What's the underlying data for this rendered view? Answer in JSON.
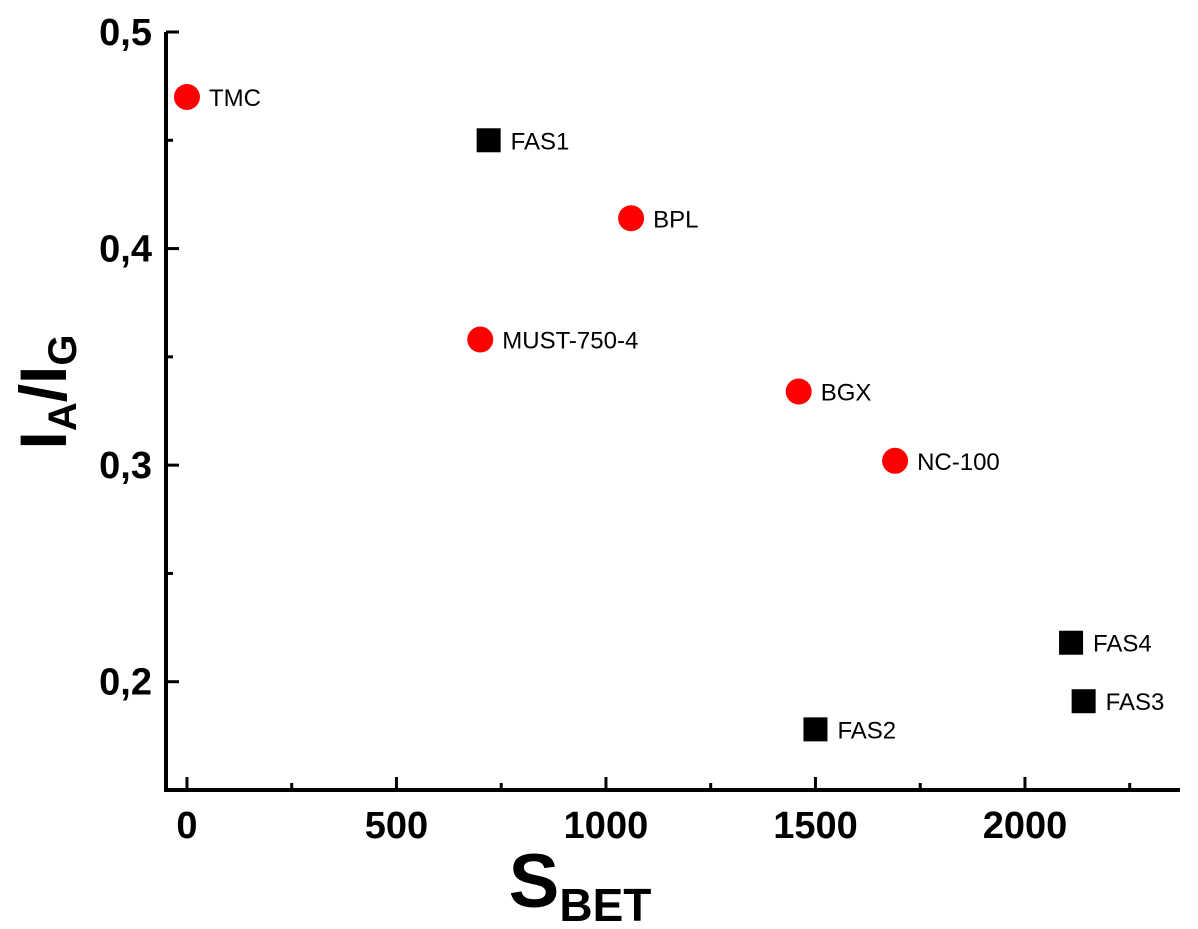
{
  "chart_data": {
    "type": "scatter",
    "xlabel": {
      "main": "S",
      "sub": "BET"
    },
    "ylabel": {
      "main1": "I",
      "sub1": "A",
      "slash": "/",
      "main2": "I",
      "sub2": "G"
    },
    "xlim": [
      -50,
      2370
    ],
    "ylim": [
      0.15,
      0.5
    ],
    "x_ticks": [
      0,
      500,
      1000,
      1500,
      2000
    ],
    "x_tick_labels": [
      "0",
      "500",
      "1000",
      "1500",
      "2000"
    ],
    "y_ticks": [
      0.2,
      0.3,
      0.4,
      0.5
    ],
    "y_tick_labels": [
      "0,2",
      "0,3",
      "0,4",
      "0,5"
    ],
    "x_minor_ticks": [
      250,
      750,
      1250,
      1750,
      2250
    ],
    "y_minor_ticks": [
      0.25,
      0.35,
      0.45
    ],
    "grid": false,
    "series": [
      {
        "marker": "circle",
        "color": "#ff0000",
        "points": [
          {
            "label": "TMC",
            "x": 0,
            "y": 0.47
          },
          {
            "label": "BPL",
            "x": 1060,
            "y": 0.414
          },
          {
            "label": "MUST-750-4",
            "x": 700,
            "y": 0.358
          },
          {
            "label": "BGX",
            "x": 1460,
            "y": 0.334
          },
          {
            "label": "NC-100",
            "x": 1690,
            "y": 0.302
          }
        ]
      },
      {
        "marker": "square",
        "color": "#000000",
        "points": [
          {
            "label": "FAS1",
            "x": 720,
            "y": 0.45
          },
          {
            "label": "FAS4",
            "x": 2110,
            "y": 0.218
          },
          {
            "label": "FAS3",
            "x": 2140,
            "y": 0.191
          },
          {
            "label": "FAS2",
            "x": 1500,
            "y": 0.178
          }
        ]
      }
    ]
  }
}
